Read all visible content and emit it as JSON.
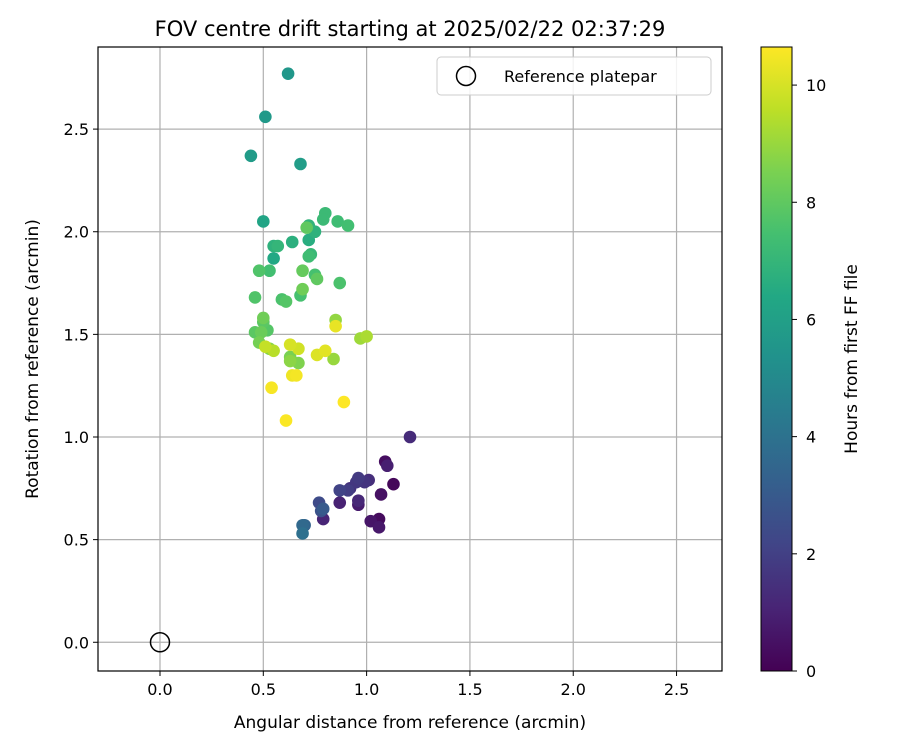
{
  "chart_data": {
    "type": "scatter",
    "title": "FOV centre drift starting at 2025/02/22 02:37:29",
    "xlabel": "Angular distance from reference (arcmin)",
    "ylabel": "Rotation from reference (arcmin)",
    "xlim": [
      -0.3,
      2.72
    ],
    "ylim": [
      -0.14,
      2.9
    ],
    "xticks": [
      0.0,
      0.5,
      1.0,
      1.5,
      2.0,
      2.5
    ],
    "xtick_labels": [
      "0.0",
      "0.5",
      "1.0",
      "1.5",
      "2.0",
      "2.5"
    ],
    "yticks": [
      0.0,
      0.5,
      1.0,
      1.5,
      2.0,
      2.5
    ],
    "ytick_labels": [
      "0.0",
      "0.5",
      "1.0",
      "1.5",
      "2.0",
      "2.5"
    ],
    "grid": true,
    "legend": {
      "placement": "top-right",
      "entries": [
        "Reference platepar"
      ]
    },
    "reference_point": {
      "x": 0.0,
      "y": 0.0
    },
    "colorbar": {
      "label": "Hours from first FF file",
      "colormap": "viridis",
      "range": [
        0,
        10.65
      ],
      "ticks": [
        0,
        2,
        4,
        6,
        8,
        10
      ],
      "tick_labels": [
        "0",
        "2",
        "4",
        "6",
        "8",
        "10"
      ]
    },
    "points": [
      {
        "x": 1.05,
        "y": 0.59,
        "h": 0.1
      },
      {
        "x": 1.13,
        "y": 0.77,
        "h": 0.2
      },
      {
        "x": 1.06,
        "y": 0.6,
        "h": 0.3
      },
      {
        "x": 1.09,
        "y": 0.88,
        "h": 0.4
      },
      {
        "x": 1.07,
        "y": 0.72,
        "h": 0.5
      },
      {
        "x": 1.02,
        "y": 0.59,
        "h": 0.6
      },
      {
        "x": 1.06,
        "y": 0.56,
        "h": 0.7
      },
      {
        "x": 0.96,
        "y": 0.67,
        "h": 0.8
      },
      {
        "x": 1.1,
        "y": 0.86,
        "h": 0.9
      },
      {
        "x": 0.87,
        "y": 0.68,
        "h": 1.0
      },
      {
        "x": 0.79,
        "y": 0.6,
        "h": 1.1
      },
      {
        "x": 0.96,
        "y": 0.69,
        "h": 1.2
      },
      {
        "x": 1.21,
        "y": 1.0,
        "h": 1.3
      },
      {
        "x": 1.01,
        "y": 0.79,
        "h": 1.4
      },
      {
        "x": 0.92,
        "y": 0.75,
        "h": 1.5
      },
      {
        "x": 0.99,
        "y": 0.78,
        "h": 1.6
      },
      {
        "x": 0.95,
        "y": 0.78,
        "h": 1.7
      },
      {
        "x": 0.96,
        "y": 0.8,
        "h": 1.8
      },
      {
        "x": 0.91,
        "y": 0.74,
        "h": 1.9
      },
      {
        "x": 0.87,
        "y": 0.74,
        "h": 2.1
      },
      {
        "x": 0.77,
        "y": 0.68,
        "h": 2.4
      },
      {
        "x": 0.78,
        "y": 0.64,
        "h": 2.7
      },
      {
        "x": 0.79,
        "y": 0.65,
        "h": 3.0
      },
      {
        "x": 0.7,
        "y": 0.57,
        "h": 3.4
      },
      {
        "x": 0.69,
        "y": 0.57,
        "h": 3.6
      },
      {
        "x": 0.69,
        "y": 0.53,
        "h": 3.9
      },
      {
        "x": 0.62,
        "y": 2.77,
        "h": 5.6
      },
      {
        "x": 0.51,
        "y": 2.56,
        "h": 5.7
      },
      {
        "x": 0.44,
        "y": 2.37,
        "h": 5.8
      },
      {
        "x": 0.68,
        "y": 2.33,
        "h": 5.9
      },
      {
        "x": 0.5,
        "y": 2.05,
        "h": 6.2
      },
      {
        "x": 0.55,
        "y": 1.87,
        "h": 6.4
      },
      {
        "x": 0.72,
        "y": 1.96,
        "h": 6.6
      },
      {
        "x": 0.64,
        "y": 1.95,
        "h": 6.7
      },
      {
        "x": 0.55,
        "y": 1.93,
        "h": 6.8
      },
      {
        "x": 0.75,
        "y": 2.0,
        "h": 6.8
      },
      {
        "x": 0.72,
        "y": 2.03,
        "h": 6.9
      },
      {
        "x": 0.57,
        "y": 1.93,
        "h": 7.0
      },
      {
        "x": 0.73,
        "y": 1.89,
        "h": 7.1
      },
      {
        "x": 0.8,
        "y": 2.09,
        "h": 7.2
      },
      {
        "x": 0.79,
        "y": 2.06,
        "h": 7.2
      },
      {
        "x": 0.86,
        "y": 2.05,
        "h": 7.3
      },
      {
        "x": 0.72,
        "y": 1.88,
        "h": 7.3
      },
      {
        "x": 0.91,
        "y": 2.03,
        "h": 7.4
      },
      {
        "x": 0.53,
        "y": 1.81,
        "h": 7.4
      },
      {
        "x": 0.75,
        "y": 1.79,
        "h": 7.5
      },
      {
        "x": 0.68,
        "y": 1.69,
        "h": 7.5
      },
      {
        "x": 0.59,
        "y": 1.67,
        "h": 7.6
      },
      {
        "x": 0.87,
        "y": 1.75,
        "h": 7.6
      },
      {
        "x": 0.48,
        "y": 1.81,
        "h": 7.7
      },
      {
        "x": 0.46,
        "y": 1.68,
        "h": 7.7
      },
      {
        "x": 0.61,
        "y": 1.66,
        "h": 7.8
      },
      {
        "x": 0.52,
        "y": 1.52,
        "h": 7.8
      },
      {
        "x": 0.46,
        "y": 1.51,
        "h": 7.9
      },
      {
        "x": 0.5,
        "y": 1.56,
        "h": 7.9
      },
      {
        "x": 0.76,
        "y": 1.77,
        "h": 8.0
      },
      {
        "x": 0.71,
        "y": 2.02,
        "h": 8.0
      },
      {
        "x": 0.69,
        "y": 1.81,
        "h": 8.1
      },
      {
        "x": 0.49,
        "y": 1.51,
        "h": 8.2
      },
      {
        "x": 0.5,
        "y": 1.58,
        "h": 8.3
      },
      {
        "x": 0.69,
        "y": 1.72,
        "h": 8.3
      },
      {
        "x": 0.48,
        "y": 1.46,
        "h": 8.4
      },
      {
        "x": 0.63,
        "y": 1.39,
        "h": 8.5
      },
      {
        "x": 0.67,
        "y": 1.36,
        "h": 8.6
      },
      {
        "x": 0.53,
        "y": 1.43,
        "h": 8.7
      },
      {
        "x": 0.63,
        "y": 1.37,
        "h": 8.8
      },
      {
        "x": 0.85,
        "y": 1.57,
        "h": 8.9
      },
      {
        "x": 0.84,
        "y": 1.38,
        "h": 9.0
      },
      {
        "x": 0.97,
        "y": 1.48,
        "h": 9.1
      },
      {
        "x": 1.0,
        "y": 1.49,
        "h": 9.3
      },
      {
        "x": 0.55,
        "y": 1.42,
        "h": 9.5
      },
      {
        "x": 0.51,
        "y": 1.44,
        "h": 9.7
      },
      {
        "x": 0.67,
        "y": 1.43,
        "h": 9.9
      },
      {
        "x": 0.63,
        "y": 1.45,
        "h": 10.0
      },
      {
        "x": 0.76,
        "y": 1.4,
        "h": 10.1
      },
      {
        "x": 0.8,
        "y": 1.42,
        "h": 10.2
      },
      {
        "x": 0.85,
        "y": 1.54,
        "h": 10.3
      },
      {
        "x": 0.64,
        "y": 1.3,
        "h": 10.4
      },
      {
        "x": 0.66,
        "y": 1.3,
        "h": 10.5
      },
      {
        "x": 0.54,
        "y": 1.24,
        "h": 10.55
      },
      {
        "x": 0.61,
        "y": 1.08,
        "h": 10.6
      },
      {
        "x": 0.89,
        "y": 1.17,
        "h": 10.65
      }
    ]
  }
}
